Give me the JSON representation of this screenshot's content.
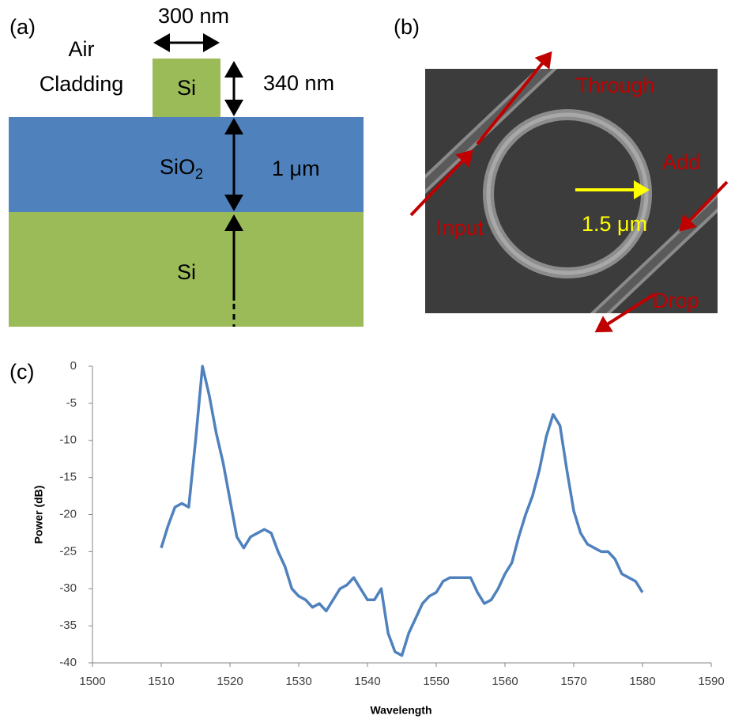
{
  "panel_a": {
    "label": "(a)",
    "width_label": "300 nm",
    "cladding": [
      "Air",
      "Cladding"
    ],
    "core": "Si",
    "height_label": "340 nm",
    "oxide": {
      "base": "SiO",
      "sub": "2"
    },
    "oxide_label": "1 μm",
    "substrate": "Si"
  },
  "panel_b": {
    "label": "(b)",
    "through": "Through",
    "add": "Add",
    "input": "Input",
    "radius": "1.5 μm",
    "drop": "Drop"
  },
  "panel_c": {
    "label": "(c)"
  },
  "chart_data": {
    "type": "line",
    "xlabel": "Wavelength",
    "ylabel": "Power (dB)",
    "color": "#4f81bd",
    "xlim": [
      1500,
      1590
    ],
    "xticks": [
      1500,
      1510,
      1520,
      1530,
      1540,
      1550,
      1560,
      1570,
      1580,
      1590
    ],
    "ylim": [
      -40,
      0
    ],
    "yticks": [
      -40,
      -35,
      -30,
      -25,
      -20,
      -15,
      -10,
      -5,
      0
    ],
    "x": [
      1510,
      1511,
      1512,
      1513,
      1514,
      1515,
      1516,
      1517,
      1518,
      1519,
      1520,
      1521,
      1522,
      1523,
      1524,
      1525,
      1526,
      1527,
      1528,
      1529,
      1530,
      1531,
      1532,
      1533,
      1534,
      1535,
      1536,
      1537,
      1538,
      1539,
      1540,
      1541,
      1542,
      1543,
      1544,
      1545,
      1546,
      1547,
      1548,
      1549,
      1550,
      1551,
      1552,
      1553,
      1554,
      1555,
      1556,
      1557,
      1558,
      1559,
      1560,
      1561,
      1562,
      1563,
      1564,
      1565,
      1566,
      1567,
      1568,
      1569,
      1570,
      1571,
      1572,
      1573,
      1574,
      1575,
      1576,
      1577,
      1578,
      1579,
      1580
    ],
    "values": [
      -24.5,
      -21.5,
      -19,
      -18.5,
      -19,
      -10,
      0,
      -4,
      -9,
      -13,
      -18,
      -23,
      -24.5,
      -23,
      -22.5,
      -22,
      -22.5,
      -25,
      -27,
      -30,
      -31,
      -31.5,
      -32.5,
      -32,
      -33,
      -31.5,
      -30,
      -29.5,
      -28.5,
      -30,
      -31.5,
      -31.5,
      -30,
      -36,
      -38.5,
      -39,
      -36,
      -34,
      -32,
      -31,
      -30.5,
      -29,
      -28.5,
      -28.5,
      -28.5,
      -28.5,
      -30.5,
      -32,
      -31.5,
      -30,
      -28,
      -26.5,
      -23,
      -20,
      -17.5,
      -14,
      -9.5,
      -6.5,
      -8,
      -14,
      -19.5,
      -22.5,
      -24,
      -24.5,
      -25,
      -25,
      -26,
      -28,
      -28.5,
      -29,
      -30.5
    ]
  }
}
